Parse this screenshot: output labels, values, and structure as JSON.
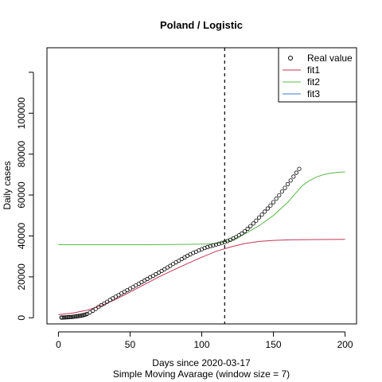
{
  "chart_data": {
    "type": "line",
    "title": "Poland / Logistic",
    "xlabel": "Days since 2020-03-17",
    "xlabel_sub": "Simple Moving Avarage (window size = 7)",
    "ylabel": "Daily cases",
    "xlim": [
      -8,
      208
    ],
    "ylim": [
      -3000,
      132000
    ],
    "x_ticks": [
      0,
      50,
      100,
      150,
      200
    ],
    "y_ticks": [
      0,
      20000,
      40000,
      60000,
      80000,
      100000,
      120000
    ],
    "y_tick_labels": [
      "0",
      "20000",
      "40000",
      "60000",
      "80000",
      "100000",
      ""
    ],
    "vline_x": 116,
    "legend": {
      "position": "top-right",
      "entries": [
        "Real value",
        "fit1",
        "fit2",
        "fit3"
      ]
    },
    "colors": {
      "real": "#000000",
      "fit1": "#c0365a",
      "fit2": "#5bb84a",
      "fit3": "#3b78c4"
    },
    "real_value": {
      "name": "Real value",
      "x": [
        2,
        3,
        4,
        5,
        6,
        7,
        8,
        9,
        10,
        11,
        12,
        13,
        14,
        15,
        16,
        17,
        18,
        19,
        20,
        22,
        24,
        26,
        28,
        30,
        32,
        34,
        36,
        38,
        40,
        42,
        44,
        46,
        48,
        50,
        52,
        54,
        56,
        58,
        60,
        62,
        64,
        66,
        68,
        70,
        72,
        74,
        76,
        78,
        80,
        82,
        84,
        86,
        88,
        90,
        92,
        94,
        96,
        98,
        100,
        102,
        104,
        106,
        108,
        110,
        112,
        114,
        116,
        118,
        120,
        122,
        124,
        126,
        128,
        130,
        132,
        134,
        136,
        138,
        140,
        142,
        144,
        146,
        148,
        150,
        152,
        154,
        156,
        158,
        160,
        162,
        164,
        166,
        168
      ],
      "y": [
        100,
        130,
        160,
        200,
        250,
        300,
        350,
        400,
        480,
        560,
        650,
        750,
        860,
        980,
        1100,
        1250,
        1420,
        1600,
        1850,
        2600,
        3400,
        4300,
        5300,
        6200,
        7000,
        7800,
        8700,
        9500,
        10300,
        11100,
        11900,
        12700,
        13500,
        14200,
        15000,
        15800,
        16600,
        17400,
        18200,
        19000,
        19800,
        20500,
        21300,
        22100,
        22900,
        23700,
        24600,
        25400,
        26300,
        27100,
        27900,
        28700,
        29500,
        30300,
        31000,
        31700,
        32300,
        32900,
        33500,
        34100,
        34600,
        35000,
        35400,
        35800,
        36200,
        36600,
        37000,
        37500,
        38100,
        38800,
        39500,
        40300,
        41200,
        42300,
        43500,
        44800,
        46100,
        47500,
        49000,
        50400,
        51900,
        53400,
        54900,
        56500,
        58200,
        59900,
        61700,
        63500,
        65300,
        67100,
        69000,
        70900,
        72800
      ]
    },
    "fit1": {
      "name": "fit1",
      "x": [
        0,
        10,
        20,
        30,
        40,
        50,
        60,
        70,
        80,
        90,
        100,
        110,
        120,
        130,
        140,
        150,
        160,
        170,
        180,
        190,
        200
      ],
      "y": [
        1500,
        2300,
        3700,
        6000,
        9000,
        12600,
        16300,
        19900,
        23300,
        26500,
        29600,
        32500,
        34600,
        36300,
        37300,
        37800,
        38100,
        38200,
        38250,
        38280,
        38300
      ]
    },
    "fit2": {
      "name": "fit2",
      "x": [
        0,
        20,
        40,
        60,
        80,
        100,
        110,
        120,
        130,
        140,
        150,
        160,
        165,
        170,
        175,
        180,
        185,
        190,
        195,
        200
      ],
      "y": [
        35700,
        35700,
        35700,
        35700,
        35800,
        36000,
        36300,
        37700,
        41000,
        45000,
        50000,
        56500,
        60500,
        64500,
        67000,
        68800,
        70000,
        70700,
        71100,
        71300
      ]
    }
  }
}
